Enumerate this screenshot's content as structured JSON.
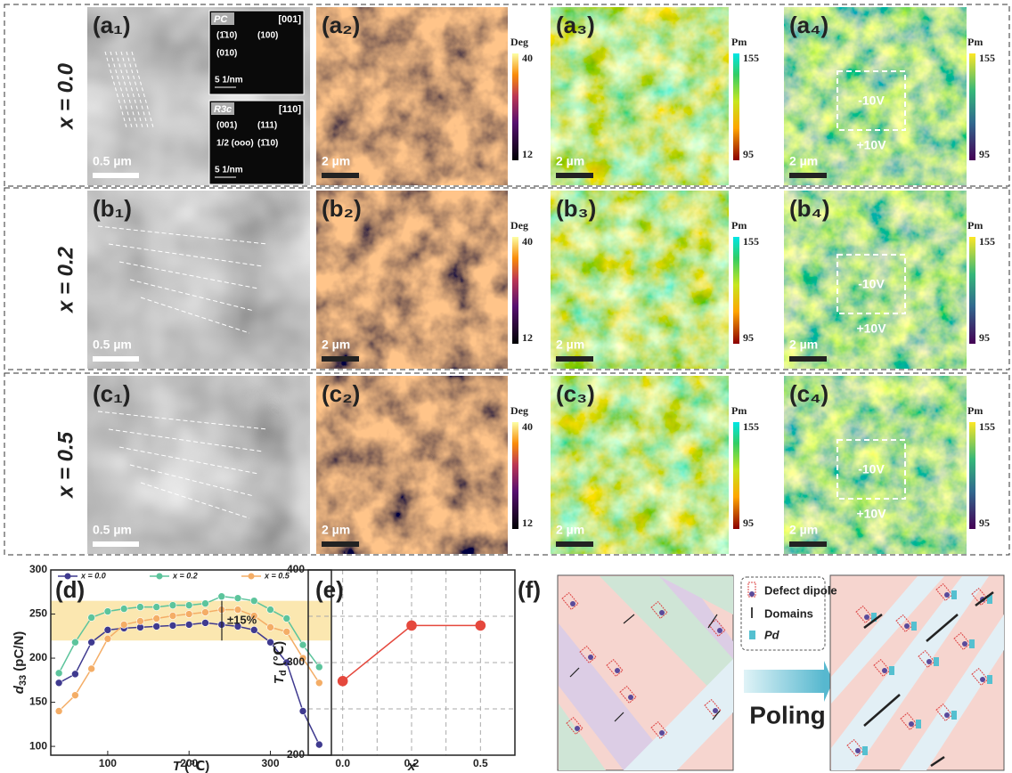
{
  "rows": [
    {
      "row_label": "x = 0.0",
      "tem_label": "(a₁)",
      "tem_scale": "0.5 µm",
      "phase_label": "(a₂)",
      "phase_unit": "Deg",
      "phase_max": "40",
      "phase_min": "12",
      "phase_scale": "2 µm",
      "amp_label": "(a₃)",
      "amp_unit": "Pm",
      "amp_max": "155",
      "amp_min": "95",
      "amp_scale": "2 µm",
      "switch_label": "(a₄)",
      "switch_unit": "Pm",
      "switch_max": "155",
      "switch_min": "95",
      "switch_scale": "2 µm",
      "v_neg": "-10V",
      "v_pos": "+10V"
    },
    {
      "row_label": "x = 0.2",
      "tem_label": "(b₁)",
      "tem_scale": "0.5 µm",
      "phase_label": "(b₂)",
      "phase_unit": "Deg",
      "phase_max": "40",
      "phase_min": "12",
      "phase_scale": "2 µm",
      "amp_label": "(b₃)",
      "amp_unit": "Pm",
      "amp_max": "155",
      "amp_min": "95",
      "amp_scale": "2 µm",
      "switch_label": "(b₄)",
      "switch_unit": "Pm",
      "switch_max": "155",
      "switch_min": "95",
      "switch_scale": "2 µm",
      "v_neg": "-10V",
      "v_pos": "+10V"
    },
    {
      "row_label": "x = 0.5",
      "tem_label": "(c₁)",
      "tem_scale": "0.5 µm",
      "phase_label": "(c₂)",
      "phase_unit": "Deg",
      "phase_max": "40",
      "phase_min": "12",
      "phase_scale": "2 µm",
      "amp_label": "(c₃)",
      "amp_unit": "Pm",
      "amp_max": "155",
      "amp_min": "95",
      "amp_scale": "2 µm",
      "switch_label": "(c₄)",
      "switch_unit": "Pm",
      "switch_max": "155",
      "switch_min": "95",
      "switch_scale": "2 µm",
      "v_neg": "-10V",
      "v_pos": "+10V"
    }
  ],
  "inset": {
    "pc": "PC",
    "pc_zone": "[001]",
    "pc_spots": [
      "(1̄10)",
      "(100)",
      "(010)"
    ],
    "pc_scale": "5 1/nm",
    "r3c": "R3c",
    "r3c_zone": "[110]",
    "r3c_spots": [
      "(001)",
      "(111)",
      "1/2 (ooo)",
      "(1̄10)"
    ],
    "r3c_scale": "5 1/nm"
  },
  "chart_data": [
    {
      "type": "line",
      "label": "(d)",
      "x": [
        40,
        60,
        80,
        100,
        120,
        140,
        160,
        180,
        200,
        220,
        240,
        260,
        280,
        300,
        320,
        340,
        360
      ],
      "series": [
        {
          "name": "x = 0.0",
          "color": "#3f3a8f",
          "values": [
            172,
            182,
            218,
            232,
            234,
            235,
            236,
            237,
            238,
            240,
            238,
            236,
            232,
            218,
            195,
            140,
            102
          ]
        },
        {
          "name": "x = 0.2",
          "color": "#5cc49c",
          "values": [
            183,
            218,
            246,
            253,
            256,
            258,
            258,
            260,
            260,
            262,
            270,
            268,
            265,
            255,
            245,
            215,
            190
          ]
        },
        {
          "name": "x = 0.5",
          "color": "#f4ad66",
          "values": [
            140,
            158,
            188,
            222,
            238,
            242,
            245,
            248,
            250,
            252,
            255,
            255,
            248,
            235,
            230,
            200,
            172
          ]
        }
      ],
      "xlim": [
        30,
        375
      ],
      "xticks": [
        100,
        200,
        300
      ],
      "ylim": [
        90,
        300
      ],
      "yticks": [
        100,
        150,
        200,
        250,
        300
      ],
      "band": [
        220,
        265
      ],
      "band_color": "#fbe7b0",
      "annotation": "±15%",
      "x_label": {
        "symbol": "T",
        "unit": " (℃)"
      },
      "y_label": {
        "symbol": "d",
        "sub": "33",
        "unit": " (pC/N)"
      },
      "legend": "top"
    },
    {
      "type": "line",
      "label": "(e)",
      "categories": [
        "0.0",
        "0.2",
        "0.5"
      ],
      "values": [
        280,
        340,
        340
      ],
      "color": "#e5483d",
      "ylim": [
        200,
        400
      ],
      "yticks": [
        200,
        300,
        400
      ],
      "grid_y": [
        250,
        300,
        350
      ],
      "grid": true,
      "x_label": {
        "symbol": "x",
        "unit": ""
      },
      "y_label": {
        "symbol": "T",
        "sub": "d",
        "unit": " (℃)"
      }
    }
  ],
  "diagram": {
    "label": "(f)",
    "legend": [
      "Defect dipole",
      "Domains",
      "Pd"
    ],
    "arrow_label": "Poling"
  }
}
